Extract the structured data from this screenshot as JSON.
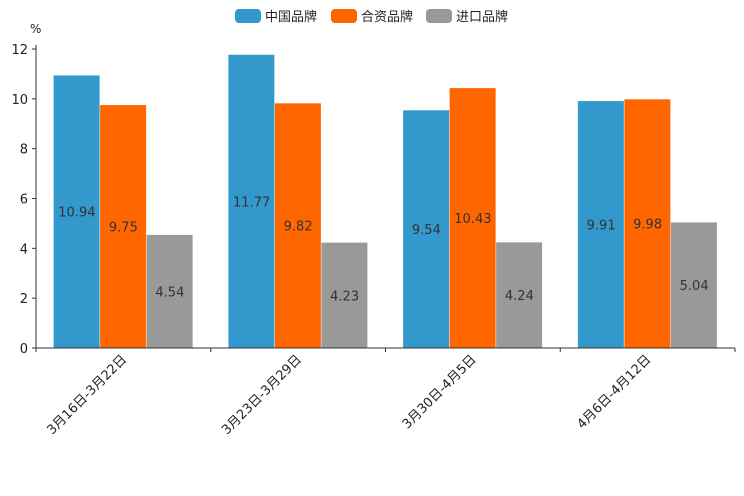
{
  "chart_data": {
    "type": "bar",
    "title": "",
    "xlabel": "",
    "ylabel": "%",
    "ylim": [
      0,
      12
    ],
    "yticks": [
      0,
      2,
      4,
      6,
      8,
      10,
      12
    ],
    "grid": false,
    "legend_position": "top-center",
    "categories": [
      "3月16日-3月22日",
      "3月23日-3月29日",
      "3月30日-4月5日",
      "4月6日-4月12日"
    ],
    "series": [
      {
        "name": "中国品牌",
        "color": "#3399cc",
        "values": [
          10.94,
          11.77,
          9.54,
          9.91
        ]
      },
      {
        "name": "合资品牌",
        "color": "#ff6600",
        "values": [
          9.75,
          9.82,
          10.43,
          9.98
        ]
      },
      {
        "name": "进口品牌",
        "color": "#999999",
        "values": [
          4.54,
          4.23,
          4.24,
          5.04
        ]
      }
    ]
  }
}
